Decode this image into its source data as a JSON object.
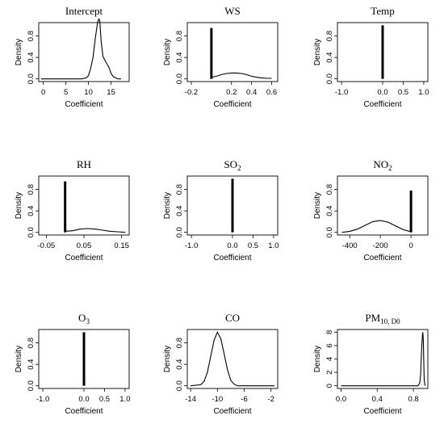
{
  "chart_data": [
    {
      "type": "line",
      "title": "Intercept",
      "xlabel": "Coefficient",
      "ylabel": "Density",
      "xlim": [
        -1,
        19
      ],
      "ylim": [
        -0.05,
        1.05
      ],
      "xticks": [
        "0",
        "5",
        "10",
        "15"
      ],
      "xtick_values": [
        0,
        5,
        10,
        15
      ],
      "yticks": [
        "0.0",
        "0.4",
        "0.8"
      ],
      "ytick_values": [
        0,
        0.4,
        0.8
      ],
      "series": [
        {
          "x": [
            -0.5,
            8.5,
            9.5,
            10.0,
            10.5,
            11.0,
            11.5,
            12.0,
            12.3,
            12.5,
            12.8,
            13.2,
            13.8,
            14.5,
            15.0,
            15.5,
            16.0,
            16.5,
            17.2
          ],
          "y": [
            0.0,
            0.0,
            0.02,
            0.06,
            0.2,
            0.4,
            0.75,
            1.05,
            1.12,
            1.08,
            0.7,
            0.42,
            0.32,
            0.22,
            0.1,
            0.04,
            0.02,
            0.0,
            0.0
          ]
        }
      ]
    },
    {
      "type": "line",
      "title": "WS",
      "xlabel": "Coefficient",
      "ylabel": "Density",
      "xlim": [
        -0.24,
        0.66
      ],
      "ylim": [
        -0.05,
        1.05
      ],
      "xticks": [
        "-0.2",
        "0.2",
        "0.4",
        "0.6"
      ],
      "xtick_values": [
        -0.2,
        0.2,
        0.4,
        0.6
      ],
      "yticks": [
        "0.0",
        "0.4",
        "0.8"
      ],
      "ytick_values": [
        0,
        0.4,
        0.8
      ],
      "spike": {
        "x": 0.0,
        "y": 0.95
      },
      "series": [
        {
          "x": [
            0.0,
            0.05,
            0.1,
            0.15,
            0.2,
            0.25,
            0.3,
            0.35,
            0.4,
            0.45,
            0.5,
            0.55,
            0.6
          ],
          "y": [
            0.03,
            0.05,
            0.08,
            0.1,
            0.11,
            0.11,
            0.1,
            0.08,
            0.05,
            0.03,
            0.02,
            0.01,
            0.01
          ]
        }
      ]
    },
    {
      "type": "line",
      "title": "Temp",
      "xlabel": "Coefficient",
      "ylabel": "Density",
      "xlim": [
        -1.1,
        1.1
      ],
      "ylim": [
        -0.05,
        1.05
      ],
      "xticks": [
        "-1.0",
        "0.0",
        "0.5",
        "1.0"
      ],
      "xtick_values": [
        -1.0,
        0.0,
        0.5,
        1.0
      ],
      "yticks": [
        "0.0",
        "0.4",
        "0.8"
      ],
      "ytick_values": [
        0,
        0.4,
        0.8
      ],
      "spike": {
        "x": 0.0,
        "y": 1.0
      },
      "series": []
    },
    {
      "type": "line",
      "title": "RH",
      "xlabel": "Coefficient",
      "ylabel": "Density",
      "xlim": [
        -0.07,
        0.17
      ],
      "ylim": [
        -0.05,
        1.05
      ],
      "xticks": [
        "-0.05",
        "0.05",
        "0.15"
      ],
      "xtick_values": [
        -0.05,
        0.05,
        0.15
      ],
      "yticks": [
        "0.0",
        "0.4",
        "0.8"
      ],
      "ytick_values": [
        0,
        0.4,
        0.8
      ],
      "spike": {
        "x": 0.0,
        "y": 0.95
      },
      "series": [
        {
          "x": [
            0.0,
            0.02,
            0.04,
            0.06,
            0.08,
            0.1,
            0.12,
            0.14,
            0.16
          ],
          "y": [
            0.02,
            0.03,
            0.06,
            0.07,
            0.06,
            0.04,
            0.02,
            0.01,
            0.0
          ]
        }
      ]
    },
    {
      "type": "line",
      "title": "SO",
      "title_sub": "2",
      "xlabel": "Coefficient",
      "ylabel": "Density",
      "xlim": [
        -1.1,
        1.1
      ],
      "ylim": [
        -0.05,
        1.05
      ],
      "xticks": [
        "-1.0",
        "0.0",
        "0.5",
        "1.0"
      ],
      "xtick_values": [
        -1.0,
        0.0,
        0.5,
        1.0
      ],
      "yticks": [
        "0.0",
        "0.4",
        "0.8"
      ],
      "ytick_values": [
        0,
        0.4,
        0.8
      ],
      "spike": {
        "x": 0.0,
        "y": 1.0
      },
      "series": []
    },
    {
      "type": "line",
      "title": "NO",
      "title_sub": "2",
      "xlabel": "Coefficient",
      "ylabel": "Density",
      "xlim": [
        -480,
        110
      ],
      "ylim": [
        -0.05,
        1.05
      ],
      "xticks": [
        "-400",
        "-200",
        "0"
      ],
      "xtick_values": [
        -400,
        -200,
        0
      ],
      "yticks": [
        "0.0",
        "0.4",
        "0.8"
      ],
      "ytick_values": [
        0,
        0.4,
        0.8
      ],
      "spike": {
        "x": 0.0,
        "y": 0.78
      },
      "series": [
        {
          "x": [
            -450,
            -400,
            -350,
            -300,
            -250,
            -200,
            -150,
            -100,
            -50,
            0
          ],
          "y": [
            0.0,
            0.02,
            0.06,
            0.13,
            0.2,
            0.22,
            0.19,
            0.12,
            0.05,
            0.01
          ]
        }
      ]
    },
    {
      "type": "line",
      "title": "O",
      "title_sub": "3",
      "xlabel": "Coefficient",
      "ylabel": "Density",
      "xlim": [
        -1.1,
        1.1
      ],
      "ylim": [
        -0.05,
        1.05
      ],
      "xticks": [
        "-1.0",
        "0.0",
        "0.5",
        "1.0"
      ],
      "xtick_values": [
        -1.0,
        0.0,
        0.5,
        1.0
      ],
      "yticks": [
        "0.0",
        "0.4",
        "0.8"
      ],
      "ytick_values": [
        0,
        0.4,
        0.8
      ],
      "spike": {
        "x": 0.0,
        "y": 1.0
      },
      "series": []
    },
    {
      "type": "line",
      "title": "CO",
      "xlabel": "Coefficient",
      "ylabel": "Density",
      "xlim": [
        -14.5,
        -1.0
      ],
      "ylim": [
        -0.05,
        1.05
      ],
      "xticks": [
        "-14",
        "-10",
        "-6",
        "-2"
      ],
      "xtick_values": [
        -14,
        -10,
        -6,
        -2
      ],
      "yticks": [
        "0.0",
        "0.4",
        "0.8"
      ],
      "ytick_values": [
        0,
        0.4,
        0.8
      ],
      "series": [
        {
          "x": [
            -14.0,
            -12.5,
            -12.0,
            -11.5,
            -11.0,
            -10.5,
            -10.0,
            -9.5,
            -9.0,
            -8.5,
            -8.0,
            -7.5,
            -7.0,
            -5.0,
            -1.5
          ],
          "y": [
            0.0,
            0.02,
            0.08,
            0.25,
            0.55,
            0.85,
            1.0,
            0.88,
            0.6,
            0.3,
            0.1,
            0.03,
            0.0,
            0.0,
            0.0
          ]
        }
      ]
    },
    {
      "type": "line",
      "title": "PM",
      "title_sub": "10, D0",
      "xlabel": "Coefficient",
      "ylabel": "Density",
      "xlim": [
        -0.04,
        0.96
      ],
      "ylim": [
        -0.05,
        1.05
      ],
      "xticks": [
        "0.0",
        "0.4",
        "0.8"
      ],
      "xtick_values": [
        0.0,
        0.4,
        0.8
      ],
      "yticks": [
        "0",
        "2",
        "4",
        "6",
        "8"
      ],
      "ytick_values": [
        0,
        0.25,
        0.5,
        0.75,
        1.0
      ],
      "series": [
        {
          "x": [
            0.0,
            0.8,
            0.85,
            0.87,
            0.88,
            0.89,
            0.9,
            0.905,
            0.91,
            0.915,
            0.92,
            0.93
          ],
          "y": [
            0.0,
            0.0,
            0.0,
            0.05,
            0.2,
            0.65,
            0.95,
            1.0,
            0.85,
            0.4,
            0.1,
            0.0
          ]
        }
      ]
    }
  ]
}
